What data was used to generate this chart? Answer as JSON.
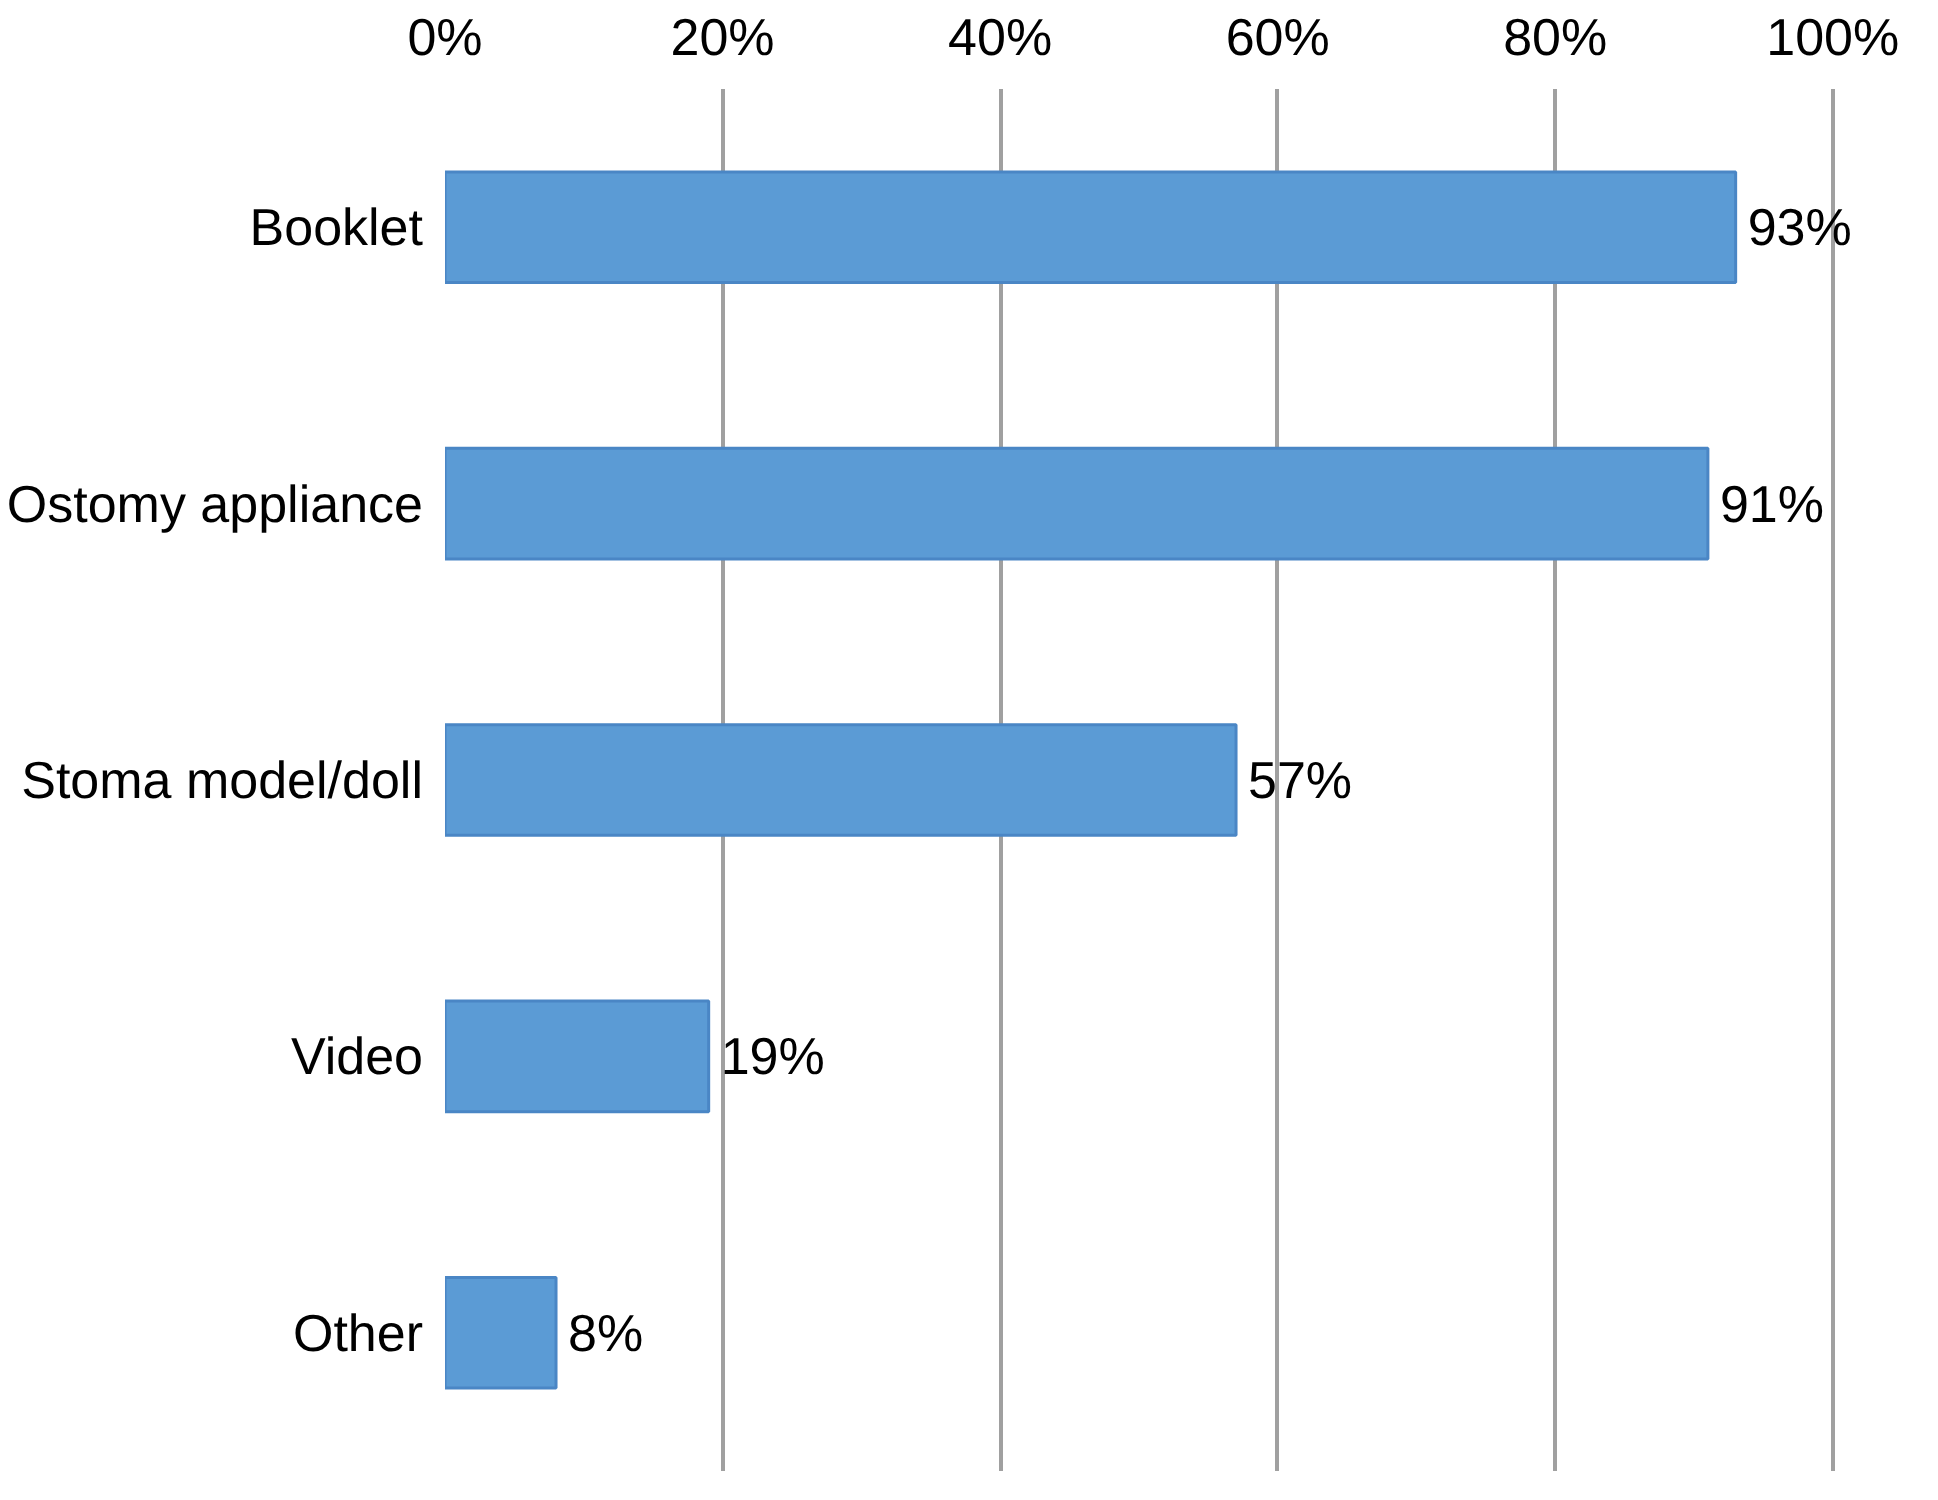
{
  "chart_data": {
    "type": "bar",
    "orientation": "horizontal",
    "categories": [
      "Booklet",
      "Ostomy appliance",
      "Stoma model/doll",
      "Video",
      "Other"
    ],
    "values": [
      93,
      91,
      57,
      19,
      8
    ],
    "value_labels": [
      "93%",
      "91%",
      "57%",
      "19%",
      "8%"
    ],
    "color": "#5b9bd5",
    "xlim": [
      0,
      100
    ],
    "xticks": [
      {
        "value": 0,
        "label": "0%"
      },
      {
        "value": 20,
        "label": "20%"
      },
      {
        "value": 40,
        "label": "40%"
      },
      {
        "value": 60,
        "label": "60%"
      },
      {
        "value": 80,
        "label": "80%"
      },
      {
        "value": 100,
        "label": "100%"
      }
    ],
    "grid": "x"
  }
}
